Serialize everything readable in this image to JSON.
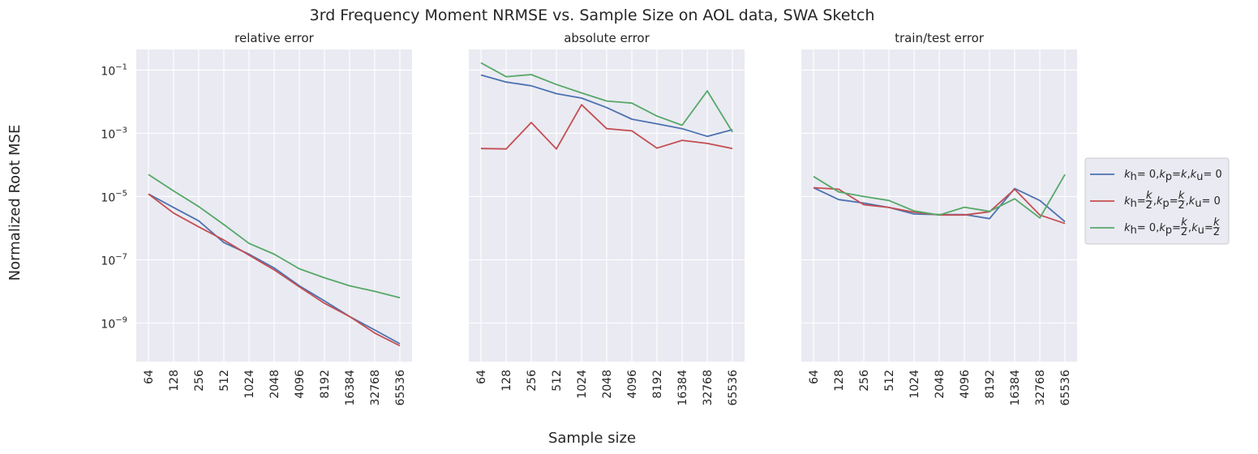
{
  "figure": {
    "title": "3rd Frequency Moment NRMSE vs. Sample Size on AOL data, SWA Sketch",
    "xlabel": "Sample size",
    "ylabel": "Normalized Root MSE"
  },
  "legend": {
    "placement": "right",
    "entries": [
      {
        "series": 0,
        "parts": [
          {
            "t": "k",
            "i": true
          },
          {
            "t": "h",
            "s": true
          },
          {
            "t": " = 0, "
          },
          {
            "t": "k",
            "i": true
          },
          {
            "t": "p",
            "s": true
          },
          {
            "t": " = "
          },
          {
            "t": "k",
            "i": true
          },
          {
            "t": ", "
          },
          {
            "t": "k",
            "i": true
          },
          {
            "t": "u",
            "s": true
          },
          {
            "t": " = 0"
          }
        ]
      },
      {
        "series": 1,
        "parts": [
          {
            "t": "k",
            "i": true
          },
          {
            "t": "h",
            "s": true
          },
          {
            "t": " = "
          },
          {
            "f": true
          },
          {
            "t": ", "
          },
          {
            "t": "k",
            "i": true
          },
          {
            "t": "p",
            "s": true
          },
          {
            "t": " = "
          },
          {
            "f": true
          },
          {
            "t": ", "
          },
          {
            "t": "k",
            "i": true
          },
          {
            "t": "u",
            "s": true
          },
          {
            "t": " = 0"
          }
        ]
      },
      {
        "series": 2,
        "parts": [
          {
            "t": "k",
            "i": true
          },
          {
            "t": "h",
            "s": true
          },
          {
            "t": " = 0, "
          },
          {
            "t": "k",
            "i": true
          },
          {
            "t": "p",
            "s": true
          },
          {
            "t": " = "
          },
          {
            "f": true
          },
          {
            "t": ", "
          },
          {
            "t": "k",
            "i": true
          },
          {
            "t": "u",
            "s": true
          },
          {
            "t": " = "
          },
          {
            "f": true
          }
        ]
      }
    ],
    "fraction_num": "k",
    "fraction_den": "2"
  },
  "colors": {
    "panel_bg": "#eaeaf2",
    "grid": "#ffffff",
    "series": [
      "#4c72b0",
      "#c44e52",
      "#55a868"
    ]
  },
  "chart_data": {
    "type": "line",
    "y_scale": "log",
    "grid": true,
    "categories": [
      "64",
      "128",
      "256",
      "512",
      "1024",
      "2048",
      "4096",
      "8192",
      "16384",
      "32768",
      "65536"
    ],
    "ytick_labels": [
      {
        "base": "10",
        "exp": "−1",
        "value": 0.1
      },
      {
        "base": "10",
        "exp": "−3",
        "value": 0.001
      },
      {
        "base": "10",
        "exp": "−5",
        "value": 1e-05
      },
      {
        "base": "10",
        "exp": "−7",
        "value": 1e-07
      },
      {
        "base": "10",
        "exp": "−9",
        "value": 1e-09
      }
    ],
    "ylim": [
      6e-11,
      0.45
    ],
    "panels": [
      {
        "title": "relative error",
        "series": [
          {
            "values": [
              1.2e-05,
              4.5e-06,
              1.7e-06,
              3.5e-07,
              1.5e-07,
              5.5e-08,
              1.5e-08,
              5e-09,
              1.6e-09,
              6e-10,
              2.2e-10
            ]
          },
          {
            "values": [
              1.2e-05,
              3e-06,
              1.1e-06,
              4.2e-07,
              1.4e-07,
              4.8e-08,
              1.4e-08,
              4.2e-09,
              1.6e-09,
              4.8e-10,
              1.9e-10
            ]
          },
          {
            "values": [
              5e-05,
              1.5e-05,
              4.8e-06,
              1.3e-06,
              3.3e-07,
              1.5e-07,
              5.2e-08,
              2.7e-08,
              1.5e-08,
              1e-08,
              6.3e-09
            ]
          }
        ]
      },
      {
        "title": "absolute error",
        "series": [
          {
            "values": [
              0.07,
              0.042,
              0.032,
              0.018,
              0.013,
              0.0065,
              0.0028,
              0.002,
              0.0014,
              0.0008,
              0.0013
            ]
          },
          {
            "values": [
              0.00033,
              0.00032,
              0.0022,
              0.00032,
              0.008,
              0.0014,
              0.0012,
              0.00034,
              0.0006,
              0.00048,
              0.00033
            ]
          },
          {
            "values": [
              0.17,
              0.062,
              0.072,
              0.035,
              0.019,
              0.0105,
              0.009,
              0.0035,
              0.0018,
              0.022,
              0.0011
            ]
          }
        ]
      },
      {
        "title": "train/test error",
        "series": [
          {
            "values": [
              1.9e-05,
              8e-06,
              6.2e-06,
              4.5e-06,
              2.8e-06,
              2.7e-06,
              2.7e-06,
              2e-06,
              1.8e-05,
              7.5e-06,
              1.6e-06
            ]
          },
          {
            "values": [
              1.9e-05,
              1.7e-05,
              5.5e-06,
              4.5e-06,
              3.2e-06,
              2.6e-06,
              2.6e-06,
              3.3e-06,
              1.7e-05,
              2.6e-06,
              1.4e-06
            ]
          },
          {
            "values": [
              4.3e-05,
              1.4e-05,
              1e-05,
              7.5e-06,
              3.5e-06,
              2.6e-06,
              4.6e-06,
              3.4e-06,
              8.5e-06,
              2.1e-06,
              5e-05
            ]
          }
        ]
      }
    ]
  }
}
